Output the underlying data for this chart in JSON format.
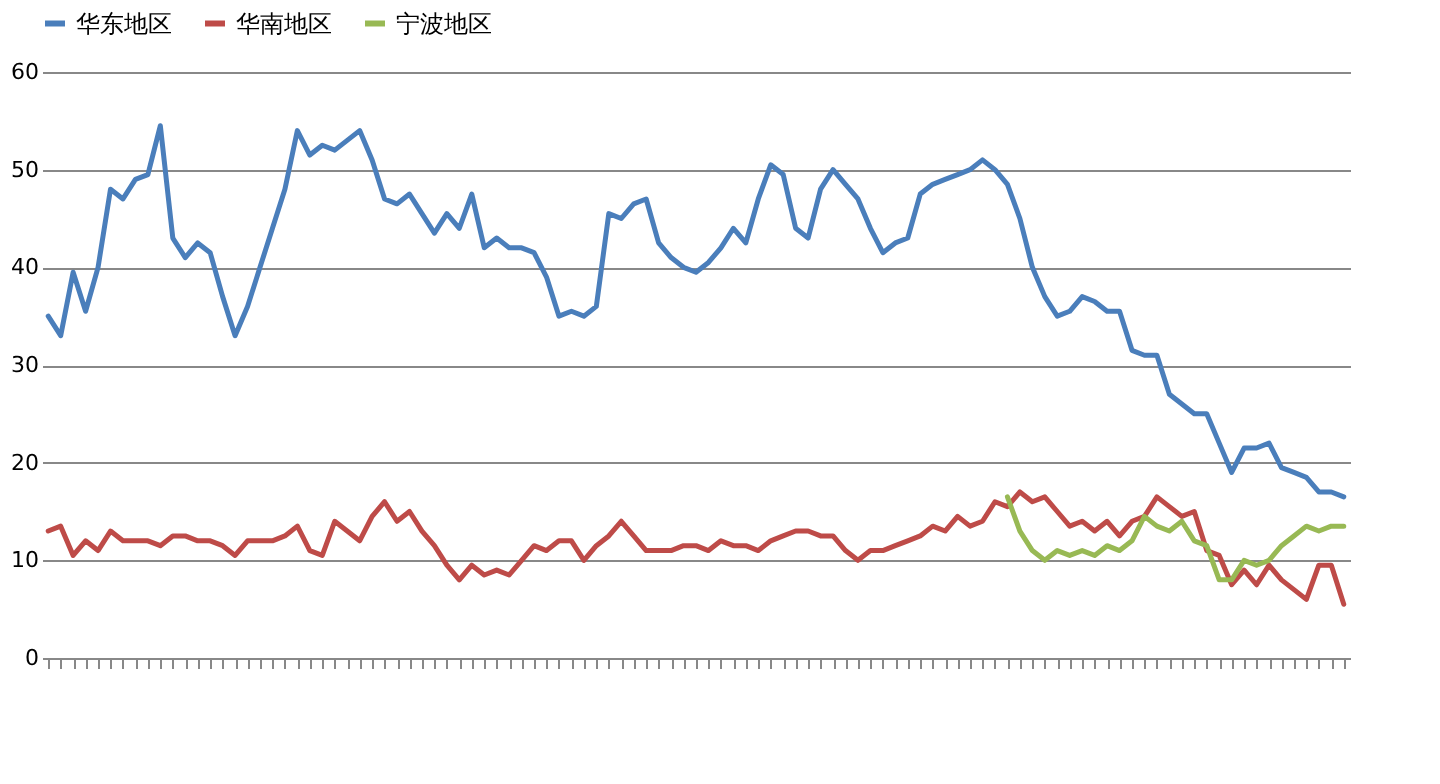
{
  "chart_data": {
    "type": "line",
    "categories": [
      null,
      null,
      null,
      null,
      null,
      null,
      null,
      null,
      null,
      null,
      null,
      null,
      null,
      null,
      null,
      null,
      null,
      null,
      null,
      null,
      null,
      null,
      null,
      null,
      null,
      null,
      null,
      null,
      null,
      null,
      null,
      null,
      null,
      null,
      null,
      null,
      null,
      null,
      null,
      null,
      null,
      null,
      null,
      null,
      null,
      null,
      null,
      null,
      null,
      null,
      null,
      null,
      null,
      null,
      null,
      null,
      null,
      null,
      null,
      null,
      null,
      null,
      null,
      null,
      null,
      null,
      null,
      null,
      null,
      null,
      null,
      null,
      null,
      null,
      null,
      null,
      null,
      null,
      null,
      null,
      null,
      null,
      null,
      null,
      null,
      null,
      null,
      null,
      null,
      null,
      null,
      null,
      null,
      null,
      null,
      null,
      null,
      null,
      null,
      null,
      null,
      null,
      null,
      null,
      null
    ],
    "series": [
      {
        "name": "华东地区",
        "color": "#4a7ebb",
        "values": [
          35,
          33,
          39.5,
          35.5,
          40,
          48,
          47,
          49,
          49.5,
          54.5,
          43,
          41,
          42.5,
          41.5,
          37,
          33,
          36,
          40,
          44,
          48,
          54,
          51.5,
          52.5,
          52,
          53,
          54,
          51,
          47,
          46.5,
          47.5,
          45.5,
          43.5,
          45.5,
          44,
          47.5,
          42,
          43,
          42,
          42,
          41.5,
          39,
          35,
          35.5,
          35,
          36,
          45.5,
          45,
          46.5,
          47,
          42.5,
          41,
          40,
          39.5,
          40.5,
          42,
          44,
          42.5,
          47,
          50.5,
          49.5,
          44,
          43,
          48,
          50,
          48.5,
          47,
          44,
          41.5,
          42.5,
          43,
          47.5,
          48.5,
          49,
          49.5,
          50,
          51,
          50,
          48.5,
          45,
          40,
          37,
          35,
          35.5,
          37,
          36.5,
          35.5,
          35.5,
          31.5,
          31,
          31,
          27,
          26,
          25,
          25,
          22,
          19,
          21.5,
          21.5,
          22,
          19.5,
          19,
          18.5,
          17,
          17,
          16.5
        ]
      },
      {
        "name": "华南地区",
        "color": "#be4b48",
        "values": [
          13,
          13.5,
          10.5,
          12,
          11,
          13,
          12,
          12,
          12,
          11.5,
          12.5,
          12.5,
          12,
          12,
          11.5,
          10.5,
          12,
          12,
          12,
          12.5,
          13.5,
          11,
          10.5,
          14,
          13,
          12,
          14.5,
          16,
          14,
          15,
          13,
          11.5,
          9.5,
          8,
          9.5,
          8.5,
          9,
          8.5,
          10,
          11.5,
          11,
          12,
          12,
          10,
          11.5,
          12.5,
          14,
          12.5,
          11,
          11,
          11,
          11.5,
          11.5,
          11,
          12,
          11.5,
          11.5,
          11,
          12,
          12.5,
          13,
          13,
          12.5,
          12.5,
          11,
          10,
          11,
          11,
          11.5,
          12,
          12.5,
          13.5,
          13,
          14.5,
          13.5,
          14,
          16,
          15.5,
          17,
          16,
          16.5,
          15,
          13.5,
          14,
          13,
          14,
          12.5,
          14,
          14.5,
          16.5,
          15.5,
          14.5,
          15,
          11,
          10.5,
          7.5,
          9,
          7.5,
          9.5,
          8,
          7,
          6,
          9.5,
          9.5,
          5.5
        ]
      },
      {
        "name": "宁波地区",
        "color": "#98b954",
        "values": [
          null,
          null,
          null,
          null,
          null,
          null,
          null,
          null,
          null,
          null,
          null,
          null,
          null,
          null,
          null,
          null,
          null,
          null,
          null,
          null,
          null,
          null,
          null,
          null,
          null,
          null,
          null,
          null,
          null,
          null,
          null,
          null,
          null,
          null,
          null,
          null,
          null,
          null,
          null,
          null,
          null,
          null,
          null,
          null,
          null,
          null,
          null,
          null,
          null,
          null,
          null,
          null,
          null,
          null,
          null,
          null,
          null,
          null,
          null,
          null,
          null,
          null,
          null,
          null,
          null,
          null,
          null,
          null,
          null,
          null,
          null,
          null,
          null,
          null,
          null,
          null,
          null,
          16.5,
          13,
          11,
          10,
          11,
          10.5,
          11,
          10.5,
          11.5,
          11,
          12,
          14.5,
          13.5,
          13,
          14,
          12,
          11.5,
          8,
          8,
          10,
          9.5,
          10,
          11.5,
          12.5,
          13.5,
          13,
          13.5,
          13.5
        ]
      }
    ],
    "ylim": [
      0,
      60
    ],
    "yticks": [
      0,
      10,
      20,
      30,
      40,
      50,
      60
    ],
    "grid": "y",
    "legend": "top",
    "tick_labels": "y",
    "marker": "none",
    "line_style": "solid"
  }
}
